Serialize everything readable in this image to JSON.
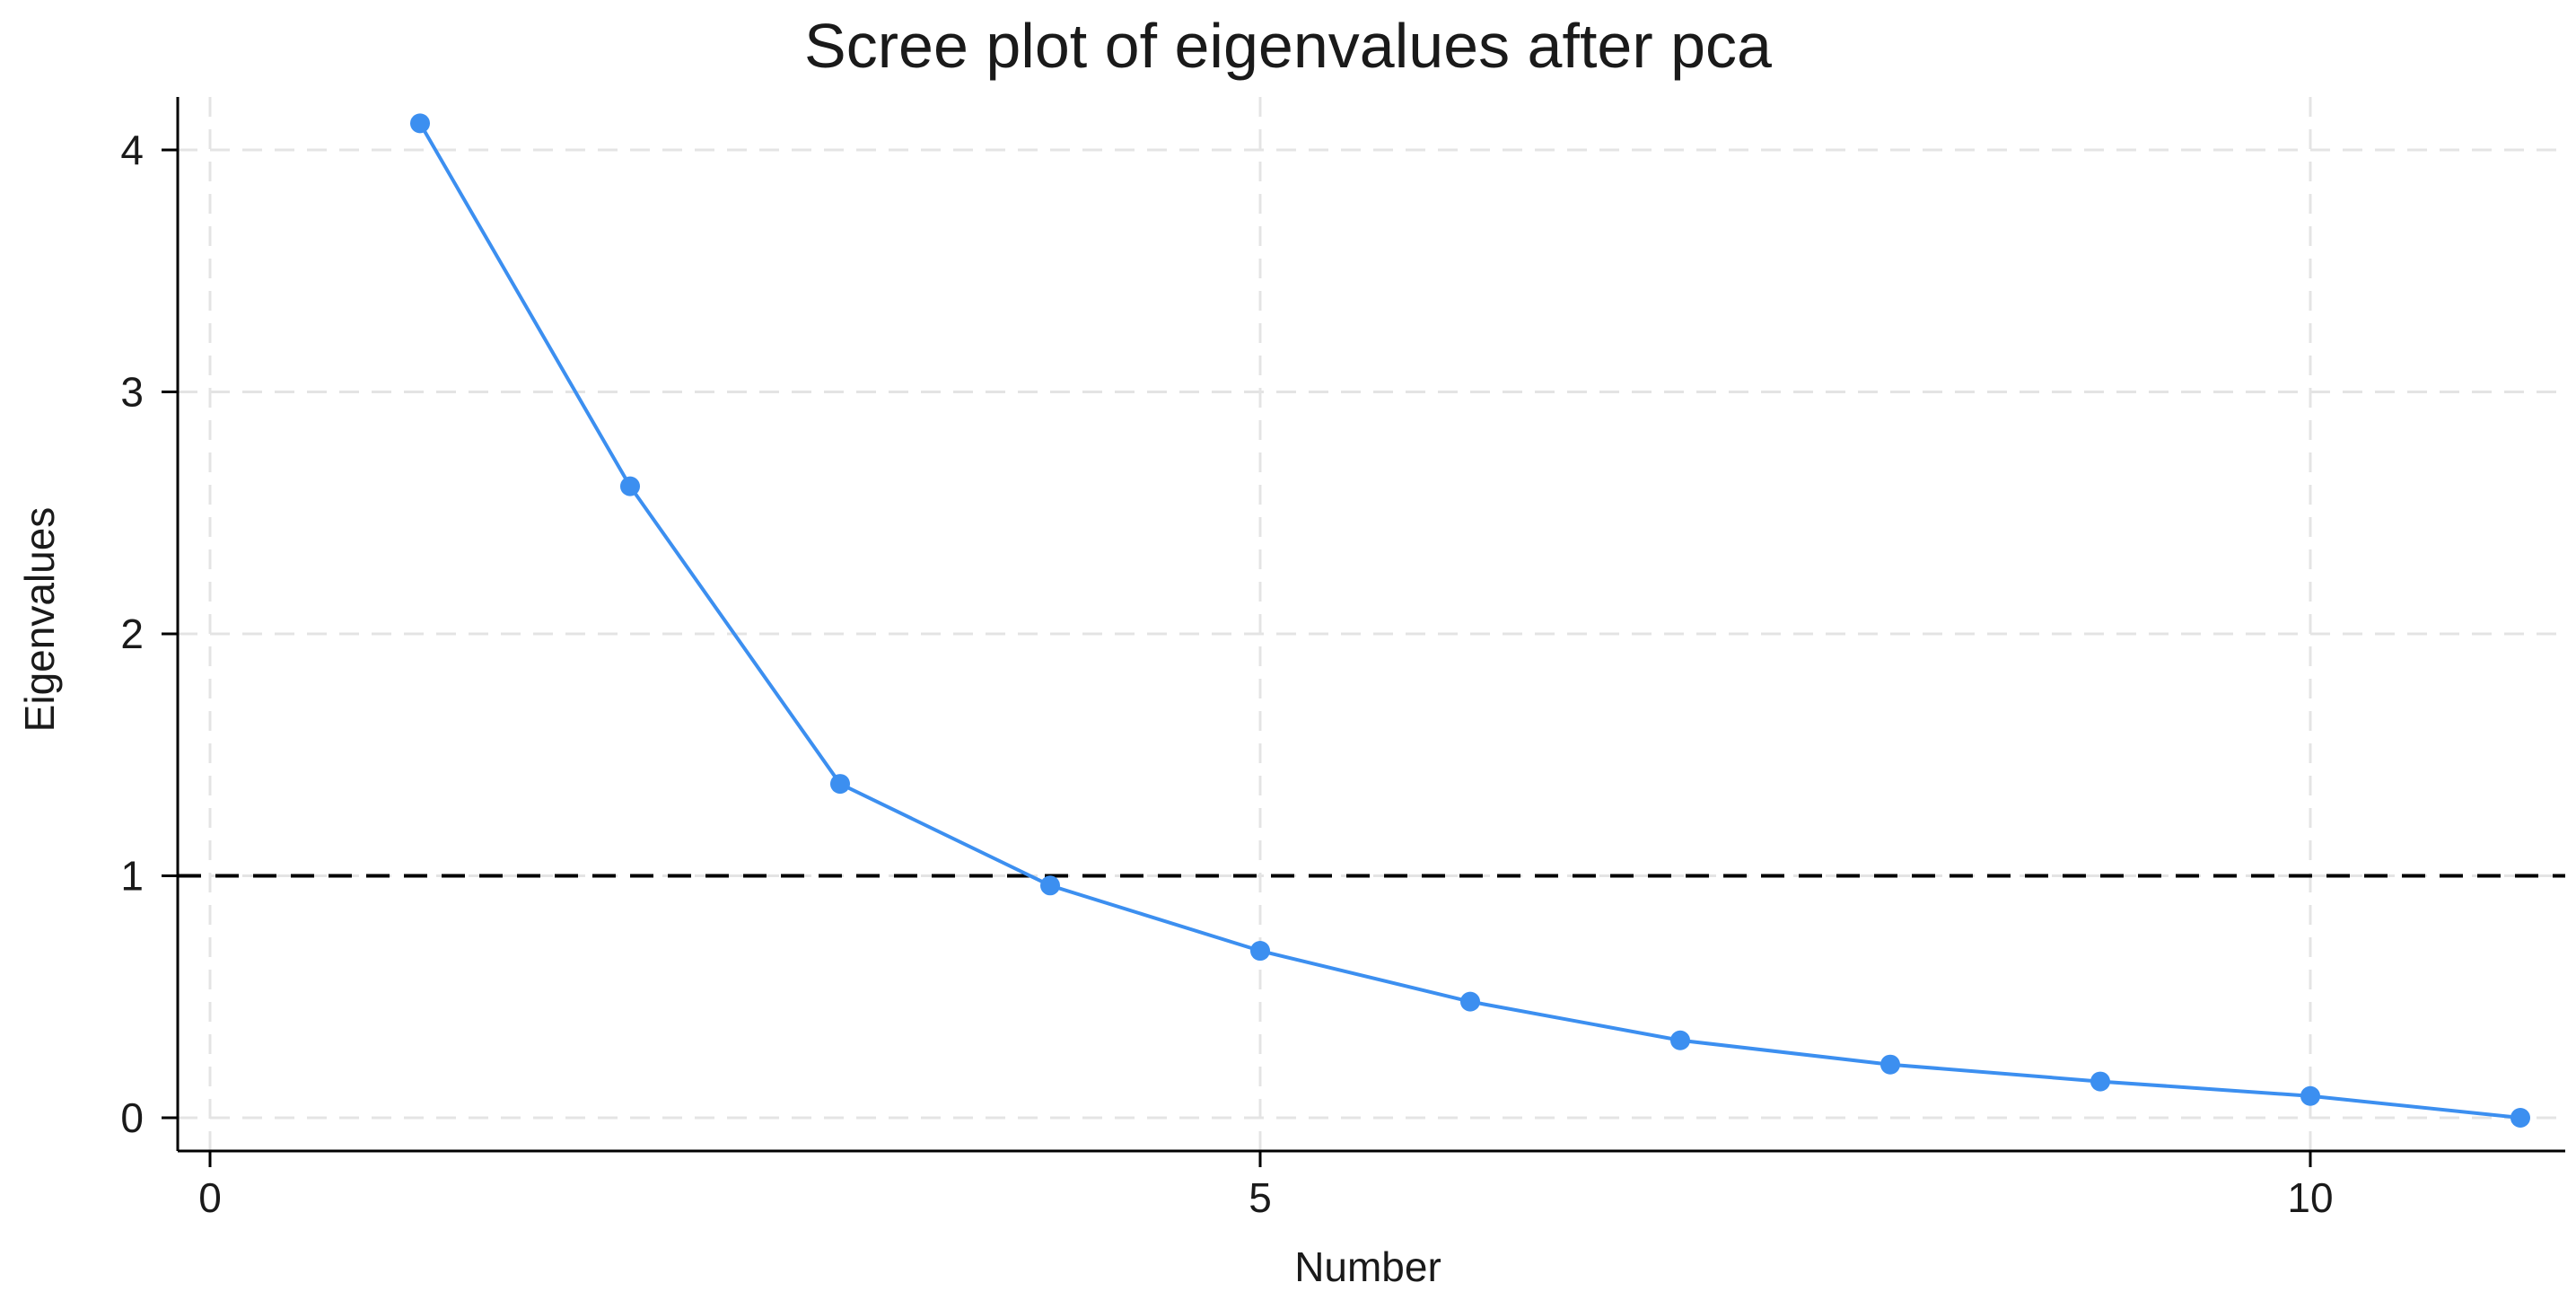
{
  "chart_data": {
    "type": "line",
    "title": "Scree plot of eigenvalues after pca",
    "xlabel": "Number",
    "ylabel": "Eigenvalues",
    "xlim": [
      0,
      11
    ],
    "ylim": [
      0,
      4.2
    ],
    "x_ticks": [
      0,
      5,
      10
    ],
    "y_ticks": [
      0,
      1,
      2,
      3,
      4
    ],
    "grid": true,
    "reference_line": {
      "y": 1,
      "style": "dashed",
      "color": "#000000"
    },
    "series": [
      {
        "x": [
          1,
          2,
          3,
          4,
          5,
          6,
          7,
          8,
          9,
          10,
          11
        ],
        "values": [
          4.11,
          2.61,
          1.38,
          0.96,
          0.69,
          0.48,
          0.32,
          0.22,
          0.15,
          0.09,
          0.0
        ],
        "color": "#3c8ff0"
      }
    ]
  }
}
